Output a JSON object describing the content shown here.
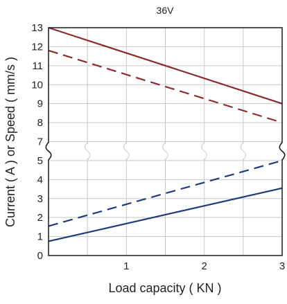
{
  "chart_data": {
    "type": "line",
    "title": "36V",
    "xlabel": "Load capacity ( KN )",
    "ylabel": "Current ( A ) or Speed ( mm/s )",
    "xlim": [
      0,
      3
    ],
    "x_ticks": [
      "1",
      "2",
      "3"
    ],
    "x_tick_values": [
      1,
      2,
      3
    ],
    "y_ticks": [
      "0",
      "1",
      "2",
      "3",
      "4",
      "5",
      "7",
      "8",
      "9",
      "10",
      "11",
      "12",
      "13"
    ],
    "y_axis_break": {
      "between": [
        "5",
        "7"
      ],
      "style": "wavy"
    },
    "grid": true,
    "legend": "none",
    "series": [
      {
        "color": "#8b2a2a",
        "style": "solid",
        "x": [
          0,
          3
        ],
        "y": [
          13.0,
          9.0
        ]
      },
      {
        "color": "#8b2a2a",
        "style": "dashed",
        "x": [
          0,
          3
        ],
        "y": [
          11.8,
          8.0
        ]
      },
      {
        "color": "#1f3a7a",
        "style": "dashed",
        "x": [
          0,
          3
        ],
        "y": [
          1.55,
          5.0
        ]
      },
      {
        "color": "#1f3a7a",
        "style": "solid",
        "x": [
          0,
          3
        ],
        "y": [
          0.75,
          3.55
        ]
      }
    ]
  }
}
